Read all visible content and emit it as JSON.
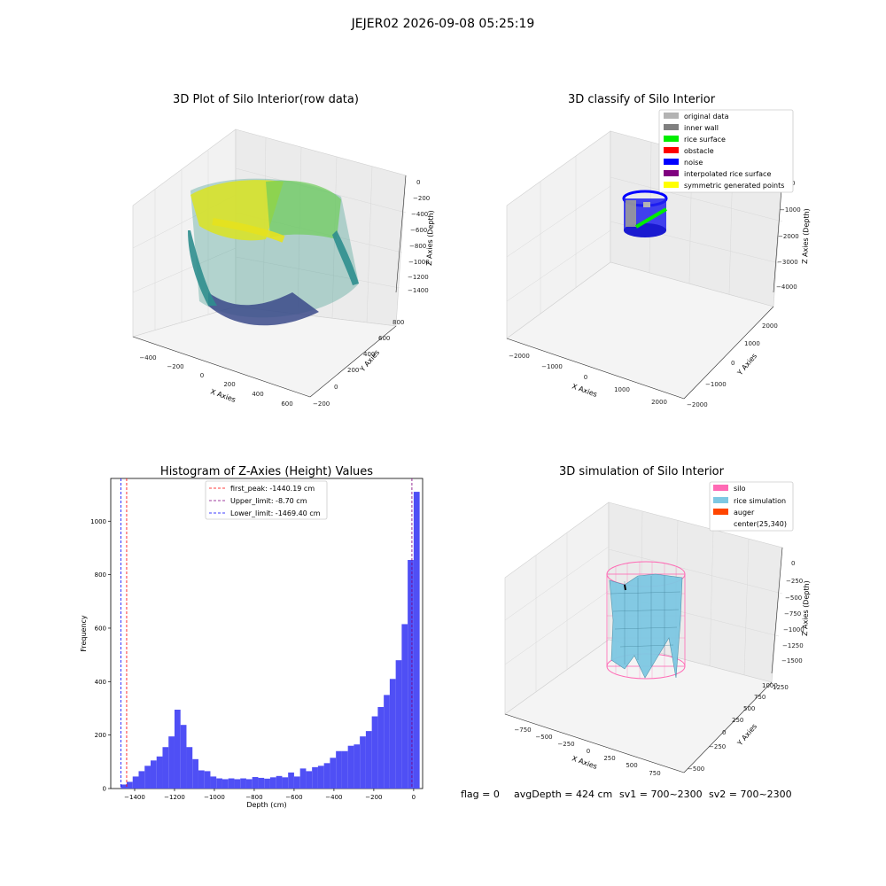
{
  "figure": {
    "title": "JEJER02 2026-09-08 05:25:19",
    "status": {
      "flag": "flag = 0",
      "avg_depth": "avgDepth = 424 cm",
      "sv1": "sv1 = 700~2300",
      "sv2": "sv2 = 700~2300"
    }
  },
  "colors": {
    "histogram_bar": "#4f4ff5",
    "first_peak_line": "#ff0000",
    "upper_line": "#800080",
    "lower_line": "#0000ff",
    "legend_original": "#b3b3b3",
    "legend_inner_wall": "#808080",
    "legend_rice_surface": "#00ee00",
    "legend_obstacle": "#ff0000",
    "legend_noise": "#0000ff",
    "legend_interpolated": "#800080",
    "legend_symmetric": "#ffff00",
    "silo": "#ff69b4",
    "rice_simulation": "#7ec8e3",
    "auger": "#ff4500"
  },
  "panels": {
    "raw": {
      "title": "3D Plot of Silo Interior(row data)",
      "xlabel": "X Axies",
      "ylabel": "Y Axies",
      "zlabel": "Z Axies (Depth)",
      "xticks": [
        "−400",
        "−200",
        "0",
        "200",
        "400",
        "600"
      ],
      "yticks": [
        "−200",
        "0",
        "200",
        "400",
        "600",
        "800"
      ],
      "zticks": [
        "0",
        "−200",
        "−400",
        "−600",
        "−800",
        "−1000",
        "−1200",
        "−1400"
      ]
    },
    "classify": {
      "title": "3D classify of Silo Interior",
      "xlabel": "X Axies",
      "ylabel": "Y Axies",
      "zlabel": "Z Axies (Depth)",
      "xticks": [
        "−2000",
        "−1000",
        "0",
        "1000",
        "2000"
      ],
      "yticks": [
        "−2000",
        "−1000",
        "0",
        "1000",
        "2000"
      ],
      "zticks": [
        "0",
        "−1000",
        "−2000",
        "−3000",
        "−4000"
      ],
      "legend": [
        "original data",
        "inner wall",
        "rice surface",
        "obstacle",
        "noise",
        "interpolated rice surface",
        "symmetric generated points"
      ]
    },
    "simulation": {
      "title": "3D simulation of Silo Interior",
      "xlabel": "X Axies",
      "ylabel": "Y Axies",
      "zlabel": "Z Axies (Depth)",
      "xticks": [
        "−750",
        "−500",
        "−250",
        "0",
        "250",
        "500",
        "750"
      ],
      "yticks": [
        "−500",
        "−250",
        "0",
        "250",
        "500",
        "750",
        "1000",
        "1250"
      ],
      "zticks": [
        "0",
        "−250",
        "−500",
        "−750",
        "−1000",
        "−1250",
        "−1500"
      ],
      "legend": [
        "silo",
        "rice simulation",
        "auger",
        "center(25,340)"
      ]
    }
  },
  "chart_data": {
    "type": "bar",
    "title": "Histogram of Z-Axies (Height) Values",
    "xlabel": "Depth (cm)",
    "ylabel": "Frequency",
    "xlim": [
      -1520,
      45
    ],
    "ylim": [
      0,
      1160
    ],
    "xticks": [
      -1400,
      -1200,
      -1000,
      -800,
      -600,
      -400,
      -200,
      0
    ],
    "xtick_labels": [
      "−1400",
      "−1200",
      "−1000",
      "−800",
      "−600",
      "−400",
      "−200",
      "0"
    ],
    "yticks": [
      0,
      200,
      400,
      600,
      800,
      1000
    ],
    "bin_start": -1470,
    "bin_width": 30,
    "values": [
      15,
      25,
      45,
      65,
      85,
      105,
      120,
      155,
      195,
      295,
      238,
      155,
      110,
      68,
      65,
      45,
      38,
      35,
      38,
      35,
      38,
      35,
      43,
      40,
      37,
      42,
      47,
      42,
      60,
      45,
      75,
      65,
      80,
      85,
      95,
      115,
      140,
      140,
      160,
      165,
      195,
      215,
      270,
      305,
      350,
      410,
      480,
      615,
      855,
      1110
    ],
    "reference_lines": [
      {
        "label": "first_peak: -1440.19 cm",
        "x": -1440.19,
        "style": "red"
      },
      {
        "label": "Upper_limit: -8.70 cm",
        "x": -8.7,
        "style": "purple"
      },
      {
        "label": "Lower_limit: -1469.40 cm",
        "x": -1469.4,
        "style": "blue"
      }
    ],
    "legend_position": "upper center"
  }
}
